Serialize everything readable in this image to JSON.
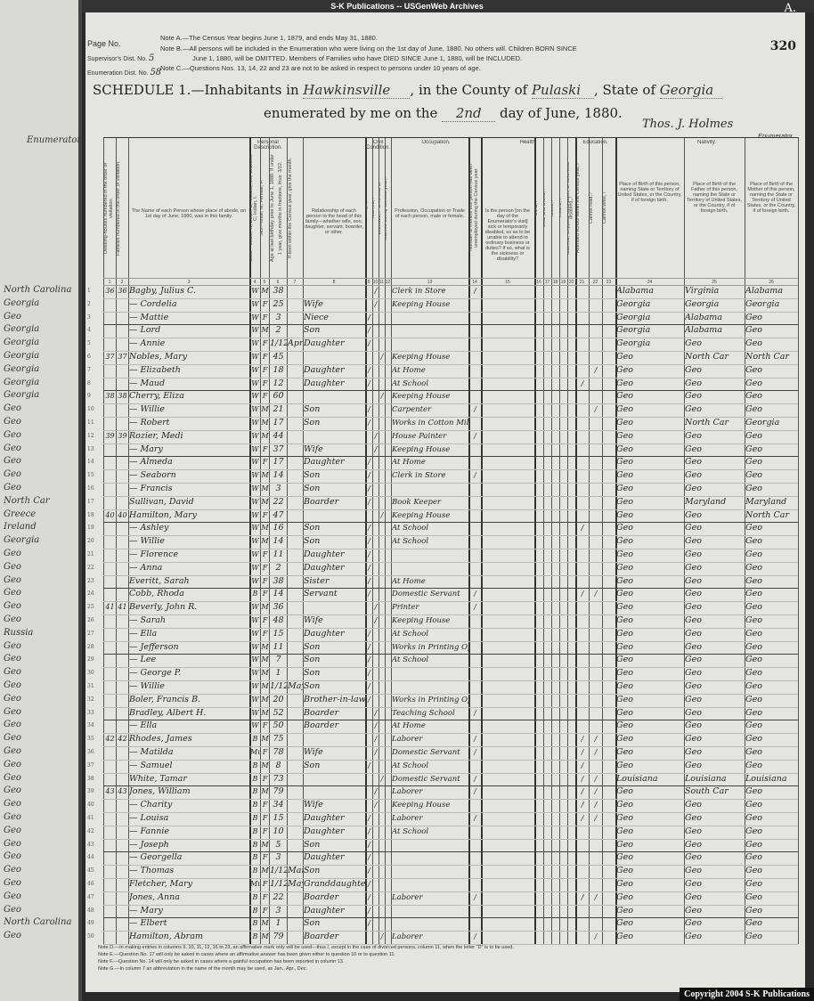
{
  "banner": "S-K Publications -- USGenWeb Archives",
  "corner_letter": "A.",
  "page_stamp": "320",
  "form": {
    "page_no_label": "Page No.",
    "supervisor_label": "Supervisor's Dist. No.",
    "supervisor_value": "5",
    "enumeration_label": "Enumeration Dist. No.",
    "enumeration_value": "58",
    "note_a": "Note A.—The Census Year begins June 1, 1879, and ends May 31, 1880.",
    "note_b1": "Note B.—All persons will be included in the Enumeration who were living on the 1st day of June, 1880. No others will. Children BORN SINCE",
    "note_b2": "June 1, 1880, will be OMITTED. Members of Families who have DIED SINCE June 1, 1880, will be INCLUDED.",
    "note_c": "Note C.—Questions Nos. 13, 14, 22 and 23 are not to be asked in respect to persons under 10 years of age.",
    "schedule_label": "SCHEDULE 1.—Inhabitants in",
    "place": "Hawkinsville",
    "county_label": ", in the County of",
    "county": "Pulaski",
    "state_label": ", State of",
    "state": "Georgia",
    "enumerated_label": "enumerated by me on the",
    "day": "2nd",
    "day_label": "day of June, 1880.",
    "enumerator_signature": "Thos. J. Holmes",
    "enumerator_label": "Enumerator."
  },
  "group_headers": {
    "personal": "Personal Description.",
    "civil": "Civil Condition.",
    "occupation": "Occupation.",
    "health": "Health.",
    "education": "Education.",
    "nativity": "Nativity."
  },
  "column_headers": [
    {
      "num": "1",
      "text": "Dwelling-houses numbered in the order of visitation."
    },
    {
      "num": "2",
      "text": "Families numbered in the order of visitation."
    },
    {
      "num": "3",
      "text": "The Name of each Person whose place of abode, on 1st day of June, 1880, was in this family."
    },
    {
      "num": "4",
      "text": "Color—White, W; Black, B; Mulatto, Mu; Chinese, C; Indian, I."
    },
    {
      "num": "5",
      "text": "Sex—Male, M; Female, F."
    },
    {
      "num": "6",
      "text": "Age at last birthday prior to June 1, 1880. If under 1 year, give months in fractions, thus: 3/12."
    },
    {
      "num": "7",
      "text": "If born within the Census year, give the month."
    },
    {
      "num": "8",
      "text": "Relationship of each person to the head of this family—whether wife, son, daughter, servant, boarder, or other."
    },
    {
      "num": "9",
      "text": "Single, /"
    },
    {
      "num": "10",
      "text": "Married, /"
    },
    {
      "num": "11",
      "text": "Widowed, /. Divorced, D."
    },
    {
      "num": "12",
      "text": "Married during Census year, /"
    },
    {
      "num": "13",
      "text": "Profession, Occupation or Trade of each person, male or female."
    },
    {
      "num": "14",
      "text": "Number of months this person has been unemployed during the Census year."
    },
    {
      "num": "15",
      "text": "Is the person [on the day of the Enumerator's visit] sick or temporarily disabled, so as to be unable to attend to ordinary business or duties? If so, what is the sickness or disability?"
    },
    {
      "num": "16",
      "text": "Blind, /"
    },
    {
      "num": "17",
      "text": "Deaf and Dumb, /"
    },
    {
      "num": "18",
      "text": "Idiotic, /"
    },
    {
      "num": "19",
      "text": "Insane, /"
    },
    {
      "num": "20",
      "text": "Maimed, Crippled, Bedridden, or otherwise disabled, /"
    },
    {
      "num": "21",
      "text": "Attended school within the Census year, /"
    },
    {
      "num": "22",
      "text": "Cannot read, /"
    },
    {
      "num": "23",
      "text": "Cannot write, /"
    },
    {
      "num": "24",
      "text": "Place of Birth of this person, naming State or Territory of United States, or the Country, if of foreign birth."
    },
    {
      "num": "25",
      "text": "Place of Birth of the Father of this person, naming the State or Territory of United States, or the Country, if of foreign birth."
    },
    {
      "num": "26",
      "text": "Place of Birth of the Mother of this person, naming the State or Territory of United States, or the Country, if of foreign birth."
    }
  ],
  "rows": [
    [
      "36",
      "36",
      "Bagby, Julius C.",
      "W",
      "M",
      "38",
      "",
      "",
      "",
      "/",
      "",
      "Clerk in Store",
      "/",
      "",
      "",
      "Alabama",
      "Virginia",
      "Alabama"
    ],
    [
      "",
      "",
      "— Cordelia",
      "W",
      "F",
      "25",
      "",
      "Wife",
      "",
      "/",
      "",
      "Keeping House",
      "",
      "",
      "",
      "Georgia",
      "Georgia",
      "Georgia"
    ],
    [
      "",
      "",
      "— Mattie",
      "W",
      "F",
      "3",
      "",
      "Niece",
      "/",
      "",
      "",
      "",
      "",
      "",
      "",
      "Georgia",
      "Alabama",
      "Geo"
    ],
    [
      "",
      "",
      "— Lord",
      "W",
      "M",
      "2",
      "",
      "Son",
      "/",
      "",
      "",
      "",
      "",
      "",
      "",
      "Georgia",
      "Alabama",
      "Geo"
    ],
    [
      "",
      "",
      "— Annie",
      "W",
      "F",
      "1/12",
      "Apr",
      "Daughter",
      "/",
      "",
      "",
      "",
      "",
      "",
      "",
      "Georgia",
      "Geo",
      "Geo"
    ],
    [
      "37",
      "37",
      "Nobles, Mary",
      "W",
      "F",
      "45",
      "",
      "",
      "",
      "",
      "/",
      "Keeping House",
      "",
      "",
      "",
      "Geo",
      "North Car",
      "North Car"
    ],
    [
      "",
      "",
      "— Elizabeth",
      "W",
      "F",
      "18",
      "",
      "Daughter",
      "/",
      "",
      "",
      "At Home",
      "",
      "",
      "/",
      "Geo",
      "Geo",
      "Geo"
    ],
    [
      "",
      "",
      "— Maud",
      "W",
      "F",
      "12",
      "",
      "Daughter",
      "/",
      "",
      "",
      "At School",
      "",
      "/",
      "",
      "Geo",
      "Geo",
      "Geo"
    ],
    [
      "38",
      "38",
      "Cherry, Eliza",
      "W",
      "F",
      "60",
      "",
      "",
      "",
      "",
      "/",
      "Keeping House",
      "",
      "",
      "",
      "Geo",
      "Geo",
      "Geo"
    ],
    [
      "",
      "",
      "— Willie",
      "W",
      "M",
      "21",
      "",
      "Son",
      "/",
      "",
      "",
      "Carpenter",
      "/",
      "",
      "/",
      "Geo",
      "Geo",
      "Geo"
    ],
    [
      "",
      "",
      "— Robert",
      "W",
      "M",
      "17",
      "",
      "Son",
      "/",
      "",
      "",
      "Works in Cotton Mill",
      "",
      "",
      "",
      "Geo",
      "North Car",
      "Georgia"
    ],
    [
      "39",
      "39",
      "Rozier, Medi",
      "W",
      "M",
      "44",
      "",
      "",
      "",
      "/",
      "",
      "House Painter",
      "/",
      "",
      "",
      "Geo",
      "Geo",
      "Geo"
    ],
    [
      "",
      "",
      "— Mary",
      "W",
      "F",
      "37",
      "",
      "Wife",
      "",
      "/",
      "",
      "Keeping House",
      "",
      "",
      "",
      "Geo",
      "Geo",
      "Geo"
    ],
    [
      "",
      "",
      "— Almeda",
      "W",
      "F",
      "17",
      "",
      "Daughter",
      "/",
      "",
      "",
      "At Home",
      "",
      "",
      "",
      "Geo",
      "Geo",
      "Geo"
    ],
    [
      "",
      "",
      "— Seaborn",
      "W",
      "M",
      "14",
      "",
      "Son",
      "/",
      "",
      "",
      "Clerk in Store",
      "/",
      "",
      "",
      "Geo",
      "Geo",
      "Geo"
    ],
    [
      "",
      "",
      "— Francis",
      "W",
      "M",
      "3",
      "",
      "Son",
      "/",
      "",
      "",
      "",
      "",
      "",
      "",
      "Geo",
      "Geo",
      "Geo"
    ],
    [
      "",
      "",
      "Sullivan, David",
      "W",
      "M",
      "22",
      "",
      "Boarder",
      "/",
      "",
      "",
      "Book Keeper",
      "",
      "",
      "",
      "Geo",
      "Maryland",
      "Maryland"
    ],
    [
      "40",
      "40",
      "Hamilton, Mary",
      "W",
      "F",
      "47",
      "",
      "",
      "",
      "",
      "/",
      "Keeping House",
      "",
      "",
      "",
      "Geo",
      "Geo",
      "North Car"
    ],
    [
      "",
      "",
      "— Ashley",
      "W",
      "M",
      "16",
      "",
      "Son",
      "/",
      "",
      "",
      "At School",
      "",
      "/",
      "",
      "Geo",
      "Geo",
      "Geo"
    ],
    [
      "",
      "",
      "— Willie",
      "W",
      "M",
      "14",
      "",
      "Son",
      "/",
      "",
      "",
      "At School",
      "",
      "",
      "",
      "Geo",
      "Geo",
      "Geo"
    ],
    [
      "",
      "",
      "— Florence",
      "W",
      "F",
      "11",
      "",
      "Daughter",
      "/",
      "",
      "",
      "",
      "",
      "",
      "",
      "Geo",
      "Geo",
      "Geo"
    ],
    [
      "",
      "",
      "— Anna",
      "W",
      "F",
      "2",
      "",
      "Daughter",
      "/",
      "",
      "",
      "",
      "",
      "",
      "",
      "Geo",
      "Geo",
      "Geo"
    ],
    [
      "",
      "",
      "Everitt, Sarah",
      "W",
      "F",
      "38",
      "",
      "Sister",
      "/",
      "",
      "",
      "At Home",
      "",
      "",
      "",
      "Geo",
      "Geo",
      "Geo"
    ],
    [
      "",
      "",
      "Cobb, Rhoda",
      "B",
      "F",
      "14",
      "",
      "Servant",
      "/",
      "",
      "",
      "Domestic Servant",
      "/",
      "/",
      "/",
      "Geo",
      "Geo",
      "Geo"
    ],
    [
      "41",
      "41",
      "Beverly, John R.",
      "W",
      "M",
      "36",
      "",
      "",
      "",
      "/",
      "",
      "Printer",
      "/",
      "",
      "",
      "Geo",
      "Geo",
      "Geo"
    ],
    [
      "",
      "",
      "— Sarah",
      "W",
      "F",
      "48",
      "",
      "Wife",
      "",
      "/",
      "",
      "Keeping House",
      "",
      "",
      "",
      "Geo",
      "Geo",
      "Geo"
    ],
    [
      "",
      "",
      "— Ella",
      "W",
      "F",
      "15",
      "",
      "Daughter",
      "/",
      "",
      "",
      "At School",
      "",
      "",
      "",
      "Geo",
      "Geo",
      "Geo"
    ],
    [
      "",
      "",
      "— Jefferson",
      "W",
      "M",
      "11",
      "",
      "Son",
      "/",
      "",
      "",
      "Works in Printing Office",
      "",
      "",
      "",
      "Geo",
      "Geo",
      "Geo"
    ],
    [
      "",
      "",
      "— Lee",
      "W",
      "M",
      "7",
      "",
      "Son",
      "/",
      "",
      "",
      "At School",
      "",
      "",
      "",
      "Geo",
      "Geo",
      "Geo"
    ],
    [
      "",
      "",
      "— George P.",
      "W",
      "M",
      "1",
      "",
      "Son",
      "/",
      "",
      "",
      "",
      "",
      "",
      "",
      "Geo",
      "Geo",
      "Geo"
    ],
    [
      "",
      "",
      "— Willie",
      "W",
      "M",
      "1/12",
      "May",
      "Son",
      "/",
      "",
      "",
      "",
      "",
      "",
      "",
      "Geo",
      "Geo",
      "Geo"
    ],
    [
      "",
      "",
      "Boler, Francis B.",
      "W",
      "M",
      "20",
      "",
      "Brother-in-law",
      "/",
      "",
      "",
      "Works in Printing Office",
      "",
      "",
      "",
      "Geo",
      "Geo",
      "Geo"
    ],
    [
      "",
      "",
      "Bradley, Albert H.",
      "W",
      "M",
      "52",
      "",
      "Boarder",
      "",
      "/",
      "",
      "Teaching School",
      "/",
      "",
      "",
      "Geo",
      "Geo",
      "Geo"
    ],
    [
      "",
      "",
      "— Ella",
      "W",
      "F",
      "50",
      "",
      "Boarder",
      "",
      "/",
      "",
      "At Home",
      "",
      "",
      "",
      "Geo",
      "Geo",
      "Geo"
    ],
    [
      "42",
      "42",
      "Rhodes, James",
      "B",
      "M",
      "75",
      "",
      "",
      "",
      "/",
      "",
      "Laborer",
      "/",
      "/",
      "/",
      "Geo",
      "Geo",
      "Geo"
    ],
    [
      "",
      "",
      "— Matilda",
      "Mu",
      "F",
      "78",
      "",
      "Wife",
      "",
      "/",
      "",
      "Domestic Servant",
      "/",
      "/",
      "/",
      "Geo",
      "Geo",
      "Geo"
    ],
    [
      "",
      "",
      "— Samuel",
      "B",
      "M",
      "8",
      "",
      "Son",
      "/",
      "",
      "",
      "At School",
      "",
      "/",
      "",
      "Geo",
      "Geo",
      "Geo"
    ],
    [
      "",
      "",
      "White, Tamar",
      "B",
      "F",
      "73",
      "",
      "",
      "",
      "",
      "/",
      "Domestic Servant",
      "/",
      "/",
      "/",
      "Louisiana",
      "Louisiana",
      "Louisiana"
    ],
    [
      "43",
      "43",
      "Jones, William",
      "B",
      "M",
      "79",
      "",
      "",
      "",
      "/",
      "",
      "Laborer",
      "/",
      "/",
      "/",
      "Geo",
      "South Car",
      "Geo"
    ],
    [
      "",
      "",
      "— Charity",
      "B",
      "F",
      "34",
      "",
      "Wife",
      "",
      "/",
      "",
      "Keeping House",
      "",
      "/",
      "/",
      "Geo",
      "Geo",
      "Geo"
    ],
    [
      "",
      "",
      "— Louisa",
      "B",
      "F",
      "15",
      "",
      "Daughter",
      "/",
      "",
      "",
      "Laborer",
      "/",
      "/",
      "/",
      "Geo",
      "Geo",
      "Geo"
    ],
    [
      "",
      "",
      "— Fannie",
      "B",
      "F",
      "10",
      "",
      "Daughter",
      "/",
      "",
      "",
      "At School",
      "",
      "",
      "",
      "Geo",
      "Geo",
      "Geo"
    ],
    [
      "",
      "",
      "— Joseph",
      "B",
      "M",
      "5",
      "",
      "Son",
      "/",
      "",
      "",
      "",
      "",
      "",
      "",
      "Geo",
      "Geo",
      "Geo"
    ],
    [
      "",
      "",
      "— Georgella",
      "B",
      "F",
      "3",
      "",
      "Daughter",
      "/",
      "",
      "",
      "",
      "",
      "",
      "",
      "Geo",
      "Geo",
      "Geo"
    ],
    [
      "",
      "",
      "— Thomas",
      "B",
      "M",
      "1/12",
      "Mar",
      "Son",
      "/",
      "",
      "",
      "",
      "",
      "",
      "",
      "Geo",
      "Geo",
      "Geo"
    ],
    [
      "",
      "",
      "Fletcher, Mary",
      "Mu",
      "F",
      "1/12",
      "May",
      "Granddaughter",
      "/",
      "",
      "",
      "",
      "",
      "",
      "",
      "Geo",
      "Geo",
      "Geo"
    ],
    [
      "",
      "",
      "Jones, Anna",
      "B",
      "F",
      "22",
      "",
      "Boarder",
      "/",
      "",
      "",
      "Laborer",
      "/",
      "/",
      "/",
      "Geo",
      "Geo",
      "Geo"
    ],
    [
      "",
      "",
      "— Mary",
      "B",
      "F",
      "3",
      "",
      "Daughter",
      "/",
      "",
      "",
      "",
      "",
      "",
      "",
      "Geo",
      "Geo",
      "Geo"
    ],
    [
      "",
      "",
      "— Elbert",
      "B",
      "M",
      "1",
      "",
      "Son",
      "/",
      "",
      "",
      "",
      "",
      "",
      "",
      "Geo",
      "Geo",
      "Geo"
    ],
    [
      "",
      "",
      "Hamilton, Abram",
      "B",
      "M",
      "79",
      "",
      "Boarder",
      "",
      "",
      "/",
      "Laborer",
      "/",
      "",
      "/",
      "Geo",
      "Geo",
      "Geo"
    ]
  ],
  "left_page": {
    "header": "Enumerator.",
    "entries": [
      "North Carolina",
      "Georgia",
      "Geo",
      "Georgia",
      "Georgia",
      "Georgia",
      "Georgia",
      "Georgia",
      "Georgia",
      "Geo",
      "Geo",
      "Geo",
      "Geo",
      "Geo",
      "Geo",
      "Geo",
      "North Car",
      "Greece",
      "Ireland",
      "Georgia",
      "Geo",
      "Geo",
      "Geo",
      "Geo",
      "Geo",
      "Geo",
      "Russia",
      "Geo",
      "Geo",
      "Geo",
      "Geo",
      "Geo",
      "Geo",
      "Geo",
      "Geo",
      "Geo",
      "Geo",
      "Geo",
      "Geo",
      "Geo",
      "Geo",
      "Geo",
      "Geo",
      "Geo",
      "Geo",
      "Geo",
      "Geo",
      "Geo",
      "North Carolina",
      "Geo"
    ]
  },
  "footnotes": [
    "Note D.—In making entries in columns 9, 10, 11, 12, 16 to 23, an affirmative mark only will be used—thus /, except in the case of divorced persons, column 11, when the letter \"D\" is to be used.",
    "Note E.—Question No. 17 will only be asked in cases where an affirmative answer has been given either to question 10 or to question 11.",
    "Note F.—Question No. 14 will only be asked in cases where a gainful occupation has been reported in column 13.",
    "Note G.—In column 7 an abbreviation in the name of the month may be used, as Jan., Apr., Dec."
  ],
  "copyright": "Copyright 2004 S-K Publications"
}
